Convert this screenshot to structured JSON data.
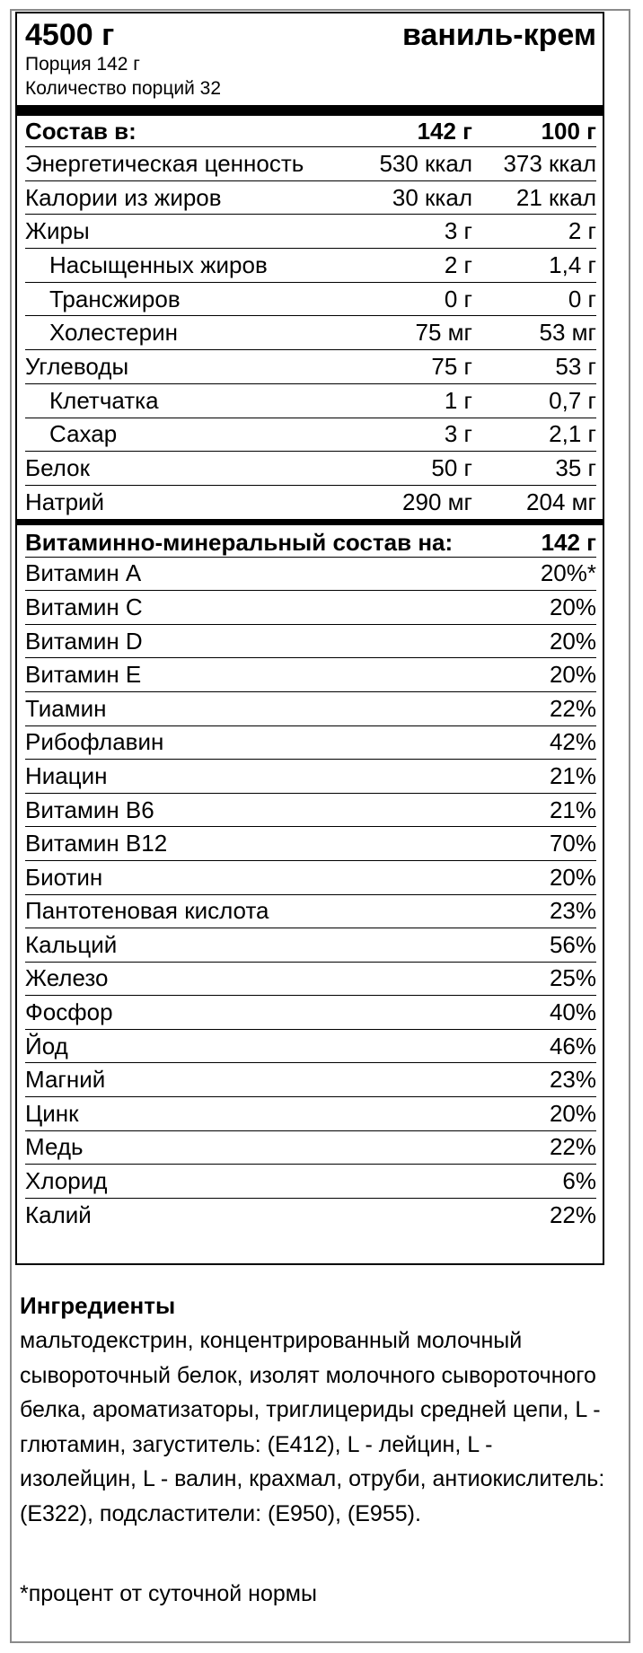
{
  "header": {
    "weight": "4500 г",
    "flavor": "ваниль-крем"
  },
  "serving": {
    "portion": "Порция 142 г",
    "count": "Количество порций 32"
  },
  "nutrition": {
    "header": {
      "label": "Состав в:",
      "col1": "142 г",
      "col2": "100 г"
    },
    "rows": [
      {
        "name": "Энергетическая ценность",
        "v1": "530 ккал",
        "v2": "373 ккал",
        "indent": false
      },
      {
        "name": "Калории из жиров",
        "v1": "30 ккал",
        "v2": "21 ккал",
        "indent": false
      },
      {
        "name": "Жиры",
        "v1": "3 г",
        "v2": "2 г",
        "indent": false
      },
      {
        "name": "Насыщенных жиров",
        "v1": "2 г",
        "v2": "1,4 г",
        "indent": true
      },
      {
        "name": "Трансжиров",
        "v1": "0 г",
        "v2": "0 г",
        "indent": true
      },
      {
        "name": "Холестерин",
        "v1": "75 мг",
        "v2": "53 мг",
        "indent": true
      },
      {
        "name": "Углеводы",
        "v1": "75 г",
        "v2": "53 г",
        "indent": false
      },
      {
        "name": "Клетчатка",
        "v1": "1 г",
        "v2": "0,7 г",
        "indent": true
      },
      {
        "name": "Сахар",
        "v1": "3 г",
        "v2": "2,1 г",
        "indent": true
      },
      {
        "name": "Белок",
        "v1": "50 г",
        "v2": "35 г",
        "indent": false
      },
      {
        "name": "Натрий",
        "v1": "290 мг",
        "v2": "204 мг",
        "indent": false
      }
    ]
  },
  "vitamins": {
    "header": {
      "label": "Витаминно-минеральный состав на:",
      "col": "142 г"
    },
    "rows": [
      {
        "name": "Витамин А",
        "value": "20%*"
      },
      {
        "name": "Витамин С",
        "value": "20%"
      },
      {
        "name": "Витамин D",
        "value": "20%"
      },
      {
        "name": "Витамин Е",
        "value": "20%"
      },
      {
        "name": "Тиамин",
        "value": "22%"
      },
      {
        "name": "Рибофлавин",
        "value": "42%"
      },
      {
        "name": "Ниацин",
        "value": "21%"
      },
      {
        "name": "Витамин В6",
        "value": "21%"
      },
      {
        "name": "Витамин В12",
        "value": "70%"
      },
      {
        "name": "Биотин",
        "value": "20%"
      },
      {
        "name": "Пантотеновая кислота",
        "value": "23%"
      },
      {
        "name": "Кальций",
        "value": "56%"
      },
      {
        "name": "Железо",
        "value": "25%"
      },
      {
        "name": "Фосфор",
        "value": "40%"
      },
      {
        "name": "Йод",
        "value": "46%"
      },
      {
        "name": "Магний",
        "value": "23%"
      },
      {
        "name": "Цинк",
        "value": "20%"
      },
      {
        "name": "Медь",
        "value": "22%"
      },
      {
        "name": "Хлорид",
        "value": "6%"
      },
      {
        "name": "Калий",
        "value": "22%"
      }
    ]
  },
  "ingredients": {
    "title": "Ингредиенты",
    "text": "мальтодекстрин, концентрированный молочный сывороточный белок, изолят молочного сывороточного белка, ароматизаторы, триглицериды средней цепи, L - глютамин, загуститель: (Е412), L - лейцин, L - изолейцин, L - валин, крахмал, отруби, антиокислитель: (Е322), подсластители: (Е950), (Е955)."
  },
  "footnote": "*процент от суточной нормы"
}
